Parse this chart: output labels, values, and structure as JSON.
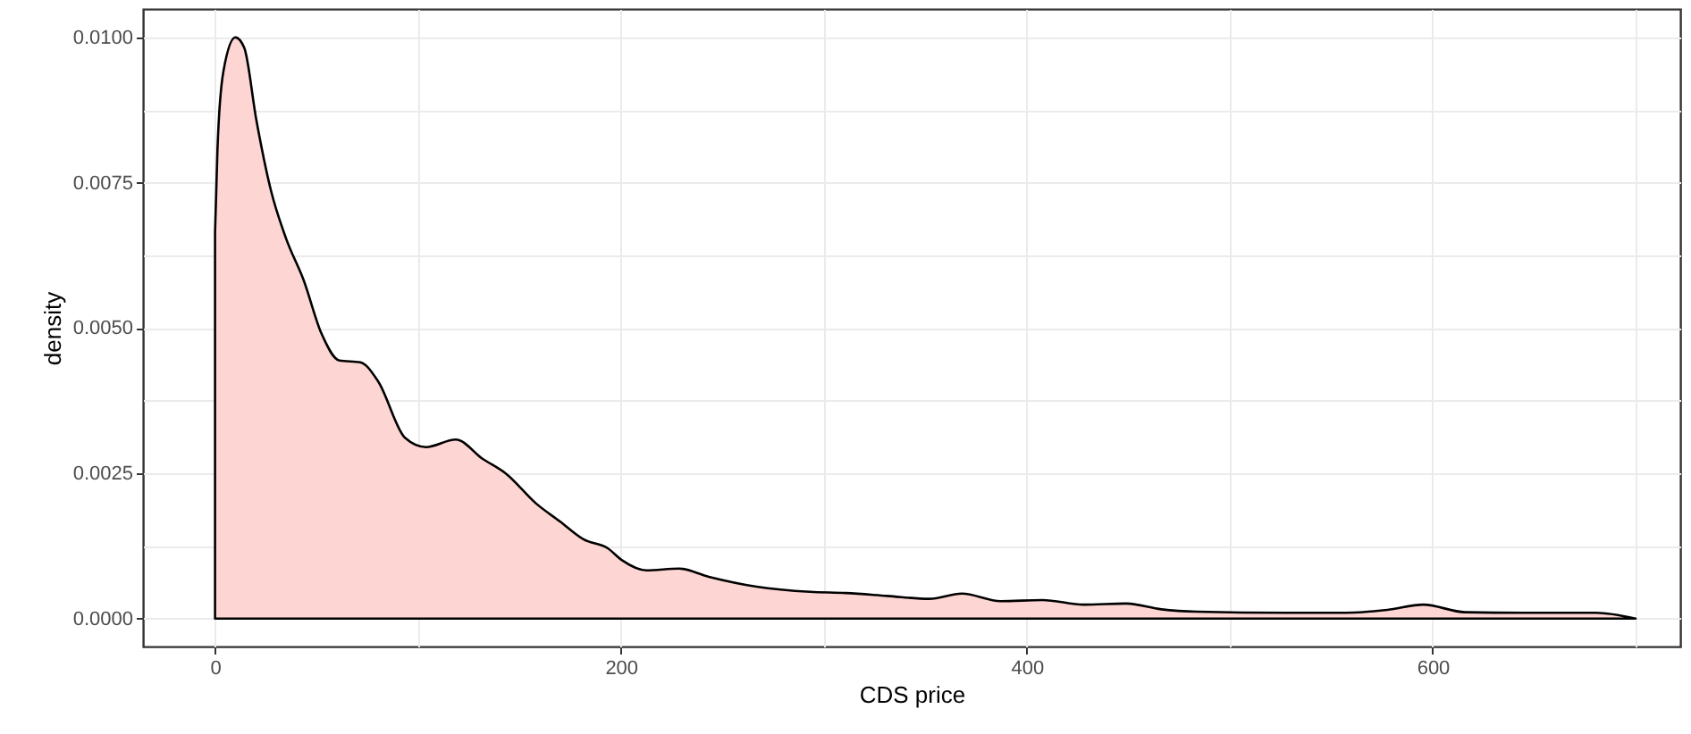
{
  "chart_data": {
    "type": "area",
    "xlabel": "CDS price",
    "ylabel": "density",
    "x": [
      0,
      1.2,
      4.1,
      10,
      14.4,
      20.3,
      27.6,
      35,
      43.7,
      52.5,
      61.3,
      71.6,
      80.4,
      93.6,
      103.9,
      118.6,
      131.8,
      143.5,
      158.2,
      170,
      181.7,
      193.5,
      200.7,
      212.5,
      228.6,
      243.3,
      266.8,
      293.2,
      310.8,
      331.3,
      351.9,
      368,
      387.1,
      407.7,
      428.2,
      448.7,
      466.3,
      483.9,
      527.9,
      557.2,
      577.7,
      595.4,
      615.9,
      645.3,
      680.5,
      700
    ],
    "series": [
      {
        "color": "#fdd6d3",
        "values": [
          0.00664,
          0.00808,
          0.00941,
          0.01,
          0.00982,
          0.00859,
          0.00736,
          0.00654,
          0.00582,
          0.0049,
          0.00444,
          0.00441,
          0.00408,
          0.00311,
          0.00295,
          0.00308,
          0.00275,
          0.00249,
          0.00198,
          0.00167,
          0.00136,
          0.00121,
          0.001,
          0.00083,
          0.00086,
          0.00072,
          0.00055,
          0.00046,
          0.00044,
          0.00039,
          0.00034,
          0.00043,
          0.0003,
          0.00032,
          0.00024,
          0.00026,
          0.00016,
          0.00012,
          0.0001,
          0.0001,
          0.00015,
          0.00024,
          0.00011,
          0.0001,
          0.0001,
          0
        ]
      }
    ],
    "xlim": [
      -35.5,
      722
    ],
    "ylim": [
      -0.00048,
      0.01049
    ],
    "xticks": [
      0,
      {
        "value": 100,
        "label": null
      },
      200,
      {
        "value": 300,
        "label": null
      },
      400,
      {
        "value": 500,
        "label": null
      },
      600,
      {
        "value": 700,
        "label": null
      }
    ],
    "yticks": [
      {
        "value": 0,
        "label": "0.0000"
      },
      {
        "value": 0.00125,
        "label": null
      },
      {
        "value": 0.0025,
        "label": "0.0025"
      },
      {
        "value": 0.00375,
        "label": null
      },
      {
        "value": 0.005,
        "label": "0.0050"
      },
      {
        "value": 0.00625,
        "label": null
      },
      {
        "value": 0.0075,
        "label": "0.0075"
      },
      {
        "value": 0.00875,
        "label": null
      },
      {
        "value": 0.01,
        "label": "0.0100"
      }
    ],
    "grid": true
  }
}
